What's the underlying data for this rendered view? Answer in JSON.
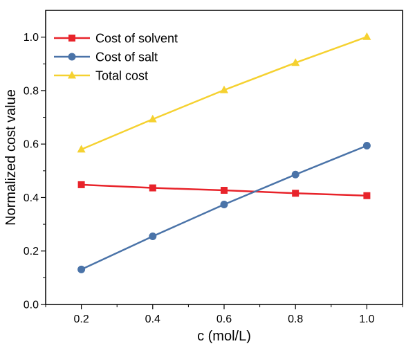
{
  "chart_data": {
    "type": "line",
    "title": "",
    "xlabel": "c (mol/L)",
    "ylabel": "Normalized cost value",
    "x": [
      0.2,
      0.4,
      0.6,
      0.8,
      1.0
    ],
    "xlim": [
      0.1,
      1.1
    ],
    "ylim": [
      0.0,
      1.1
    ],
    "xticks": [
      0.2,
      0.4,
      0.6,
      0.8,
      1.0
    ],
    "xtick_labels": [
      "0.2",
      "0.4",
      "0.6",
      "0.8",
      "1.0"
    ],
    "yticks": [
      0.0,
      0.2,
      0.4,
      0.6,
      0.8,
      1.0
    ],
    "ytick_labels": [
      "0.0",
      "0.2",
      "0.4",
      "0.6",
      "0.8",
      "1.0"
    ],
    "grid": false,
    "legend_position": "top-left",
    "series": [
      {
        "name": "Cost of solvent",
        "values": [
          0.448,
          0.436,
          0.427,
          0.416,
          0.407
        ],
        "color": "#e8232a",
        "marker": "square"
      },
      {
        "name": "Cost of salt",
        "values": [
          0.131,
          0.255,
          0.374,
          0.486,
          0.594
        ],
        "color": "#4a73a8",
        "marker": "circle"
      },
      {
        "name": "Total cost",
        "values": [
          0.58,
          0.693,
          0.802,
          0.904,
          1.001
        ],
        "color": "#f5d130",
        "marker": "triangle"
      }
    ]
  }
}
